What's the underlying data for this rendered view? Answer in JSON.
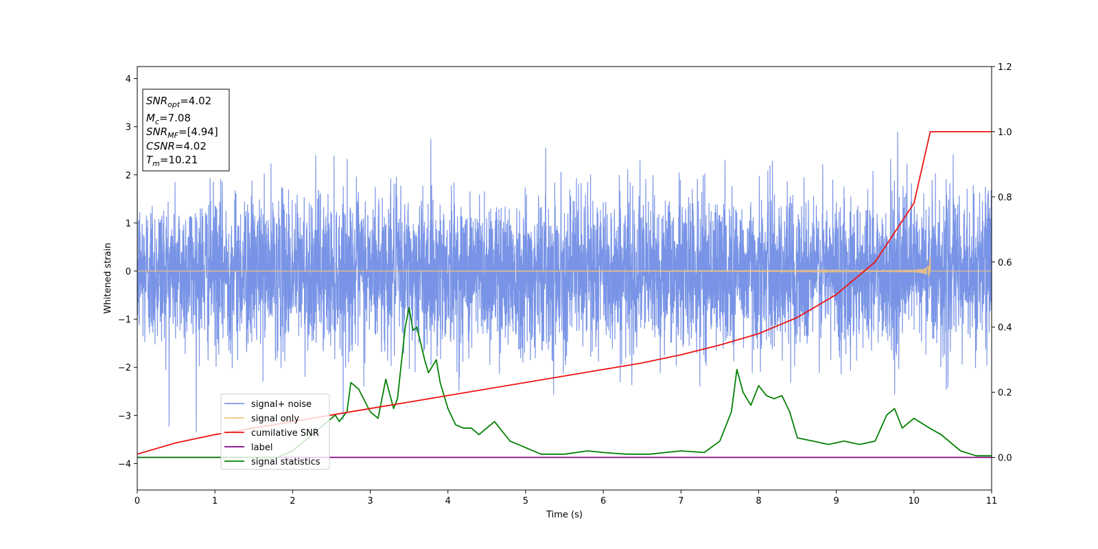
{
  "chart_data": {
    "type": "line",
    "title": "",
    "xlabel": "Time (s)",
    "ylabel": "Whitened strain",
    "y2label": "",
    "xlim": [
      0,
      11
    ],
    "ylim": [
      -4.55,
      4.25
    ],
    "y2lim": [
      -0.1,
      1.2
    ],
    "xticks": [
      0,
      1,
      2,
      3,
      4,
      5,
      6,
      7,
      8,
      9,
      10,
      11
    ],
    "yticks": [
      4,
      3,
      2,
      1,
      0,
      -1,
      -2,
      -3,
      -4
    ],
    "y2ticks": [
      1.2,
      1.0,
      0.8,
      0.6,
      0.4,
      0.2,
      0.0
    ],
    "grid": false,
    "legend_position": "lower-left",
    "info_box": {
      "lines": [
        {
          "var": "SNR",
          "sub": "opt",
          "value": "=4.02"
        },
        {
          "var": "M",
          "sub": "c",
          "value": "=7.08"
        },
        {
          "var": "SNR",
          "sub": "MF",
          "value": "=[4.94]"
        },
        {
          "var": "CSNR",
          "sub": "",
          "value": "=4.02"
        },
        {
          "var": "T",
          "sub": "m",
          "value": "=10.21"
        }
      ]
    },
    "series": [
      {
        "name": "signal+ noise",
        "color": "#7994e6",
        "axis": "left",
        "kind": "noise",
        "sigma": 0.8,
        "ylim_spikes": [
          -4.2,
          3.9
        ]
      },
      {
        "name": "signal only",
        "color": "#f5c57a",
        "axis": "left",
        "kind": "chirp",
        "merger_time": 10.21,
        "peak_amplitude": 0.55
      },
      {
        "name": "cumilative SNR",
        "color": "#ee1111",
        "axis": "right",
        "x": [
          0,
          0.5,
          1,
          1.5,
          2,
          2.5,
          3,
          3.5,
          4,
          4.5,
          5,
          5.5,
          6,
          6.5,
          7,
          7.5,
          8,
          8.5,
          9,
          9.5,
          10,
          10.21,
          10.5,
          11
        ],
        "y": [
          0.01,
          0.045,
          0.07,
          0.09,
          0.11,
          0.13,
          0.15,
          0.17,
          0.19,
          0.21,
          0.23,
          0.25,
          0.27,
          0.29,
          0.315,
          0.345,
          0.38,
          0.43,
          0.5,
          0.6,
          0.78,
          1.0,
          1.0,
          1.0
        ]
      },
      {
        "name": "label",
        "color": "#800080",
        "axis": "right",
        "x": [
          0,
          11
        ],
        "y": [
          0.0,
          0.0
        ]
      },
      {
        "name": "signal statistics",
        "color": "#008000",
        "axis": "right",
        "x": [
          0,
          1.8,
          2.0,
          2.2,
          2.4,
          2.55,
          2.6,
          2.7,
          2.75,
          2.85,
          3.0,
          3.1,
          3.2,
          3.3,
          3.35,
          3.45,
          3.5,
          3.55,
          3.6,
          3.7,
          3.75,
          3.85,
          3.9,
          4.0,
          4.1,
          4.2,
          4.3,
          4.4,
          4.6,
          4.8,
          5.0,
          5.2,
          5.5,
          5.8,
          6.0,
          6.3,
          6.6,
          7.0,
          7.3,
          7.5,
          7.65,
          7.72,
          7.8,
          7.9,
          8.0,
          8.1,
          8.2,
          8.3,
          8.4,
          8.5,
          8.7,
          8.9,
          9.1,
          9.3,
          9.5,
          9.65,
          9.75,
          9.85,
          10.0,
          10.2,
          10.35,
          10.6,
          10.8,
          11.0
        ],
        "y": [
          0.0,
          0.0,
          0.02,
          0.06,
          0.1,
          0.13,
          0.11,
          0.14,
          0.23,
          0.21,
          0.14,
          0.12,
          0.24,
          0.15,
          0.18,
          0.4,
          0.46,
          0.39,
          0.4,
          0.3,
          0.26,
          0.3,
          0.23,
          0.15,
          0.1,
          0.09,
          0.09,
          0.07,
          0.11,
          0.05,
          0.03,
          0.01,
          0.01,
          0.02,
          0.015,
          0.01,
          0.01,
          0.02,
          0.015,
          0.05,
          0.14,
          0.27,
          0.2,
          0.16,
          0.22,
          0.19,
          0.18,
          0.19,
          0.14,
          0.06,
          0.05,
          0.04,
          0.05,
          0.04,
          0.05,
          0.13,
          0.15,
          0.09,
          0.12,
          0.09,
          0.07,
          0.02,
          0.005,
          0.005
        ]
      }
    ]
  }
}
